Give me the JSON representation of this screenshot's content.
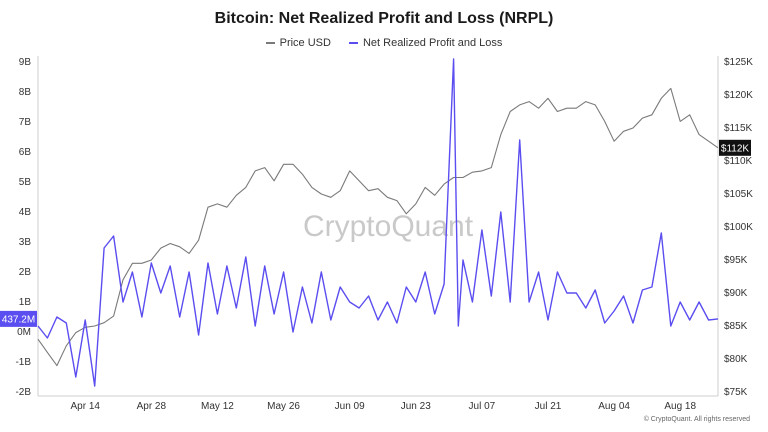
{
  "chart_data": {
    "type": "line",
    "title": "Bitcoin: Net Realized Profit and Loss (NRPL)",
    "legend": [
      {
        "name": "Price USD",
        "color": "#7a7a7a"
      },
      {
        "name": "Net Realized Profit and Loss",
        "color": "#5b4ef0"
      }
    ],
    "x_ticks": [
      "Apr 14",
      "Apr 28",
      "May 12",
      "May 26",
      "Jun 09",
      "Jun 23",
      "Jul 07",
      "Jul 21",
      "Aug 04",
      "Aug 18"
    ],
    "x_range": [
      "2024-04-04",
      "2024-08-26"
    ],
    "left_axis": {
      "ticks": [
        "9B",
        "8B",
        "7B",
        "6B",
        "5B",
        "4B",
        "3B",
        "2B",
        "1B",
        "0M",
        "-1B",
        "-2B"
      ],
      "ylim": [
        -2000000000,
        9000000000
      ]
    },
    "right_axis": {
      "ticks": [
        "$125K",
        "$120K",
        "$115K",
        "$110K",
        "$105K",
        "$100K",
        "$95K",
        "$90K",
        "$85K",
        "$80K",
        "$75K"
      ],
      "ylim": [
        75000,
        125000
      ]
    },
    "current_nrpl_label": "437.2M",
    "current_nrpl_value": 437200000,
    "current_price_label": "$112K",
    "current_price_value": 112000,
    "watermark": "CryptoQuant",
    "credit": "© CryptoQuant. All rights reserved",
    "series": [
      {
        "name": "Price USD",
        "color": "#7a7a7a",
        "x": [
          "2024-04-04",
          "2024-04-06",
          "2024-04-08",
          "2024-04-10",
          "2024-04-12",
          "2024-04-14",
          "2024-04-16",
          "2024-04-18",
          "2024-04-20",
          "2024-04-22",
          "2024-04-24",
          "2024-04-26",
          "2024-04-28",
          "2024-04-30",
          "2024-05-02",
          "2024-05-04",
          "2024-05-06",
          "2024-05-08",
          "2024-05-10",
          "2024-05-12",
          "2024-05-14",
          "2024-05-16",
          "2024-05-18",
          "2024-05-20",
          "2024-05-22",
          "2024-05-24",
          "2024-05-26",
          "2024-05-28",
          "2024-05-30",
          "2024-06-01",
          "2024-06-03",
          "2024-06-05",
          "2024-06-07",
          "2024-06-09",
          "2024-06-11",
          "2024-06-13",
          "2024-06-15",
          "2024-06-17",
          "2024-06-19",
          "2024-06-21",
          "2024-06-23",
          "2024-06-25",
          "2024-06-27",
          "2024-06-29",
          "2024-07-01",
          "2024-07-03",
          "2024-07-05",
          "2024-07-07",
          "2024-07-09",
          "2024-07-11",
          "2024-07-13",
          "2024-07-15",
          "2024-07-17",
          "2024-07-19",
          "2024-07-21",
          "2024-07-23",
          "2024-07-25",
          "2024-07-27",
          "2024-07-29",
          "2024-07-31",
          "2024-08-02",
          "2024-08-04",
          "2024-08-06",
          "2024-08-08",
          "2024-08-10",
          "2024-08-12",
          "2024-08-14",
          "2024-08-16",
          "2024-08-18",
          "2024-08-20",
          "2024-08-22",
          "2024-08-24",
          "2024-08-26"
        ],
        "values": [
          83000,
          81000,
          79000,
          82000,
          84000,
          84800,
          85000,
          85500,
          86500,
          92000,
          94500,
          94500,
          95000,
          96800,
          97500,
          97000,
          96000,
          98000,
          103000,
          103500,
          103000,
          104800,
          106000,
          108500,
          109000,
          107000,
          109500,
          109500,
          108000,
          106000,
          105000,
          104500,
          105500,
          108500,
          107000,
          105500,
          105800,
          104500,
          104000,
          102000,
          103500,
          106000,
          104800,
          106500,
          107500,
          107500,
          108300,
          108500,
          109000,
          114000,
          117500,
          118500,
          119000,
          118000,
          119500,
          117500,
          118000,
          118000,
          119000,
          118500,
          116000,
          113000,
          114500,
          115000,
          116500,
          117000,
          119500,
          121000,
          116000,
          117000,
          114000,
          113000,
          112000
        ]
      },
      {
        "name": "Net Realized Profit and Loss",
        "color": "#5b4ef0",
        "x": [
          "2024-04-04",
          "2024-04-06",
          "2024-04-08",
          "2024-04-10",
          "2024-04-12",
          "2024-04-14",
          "2024-04-16",
          "2024-04-18",
          "2024-04-20",
          "2024-04-22",
          "2024-04-24",
          "2024-04-26",
          "2024-04-28",
          "2024-04-30",
          "2024-05-02",
          "2024-05-04",
          "2024-05-06",
          "2024-05-08",
          "2024-05-10",
          "2024-05-12",
          "2024-05-14",
          "2024-05-16",
          "2024-05-18",
          "2024-05-20",
          "2024-05-22",
          "2024-05-24",
          "2024-05-26",
          "2024-05-28",
          "2024-05-30",
          "2024-06-01",
          "2024-06-03",
          "2024-06-05",
          "2024-06-07",
          "2024-06-09",
          "2024-06-11",
          "2024-06-13",
          "2024-06-15",
          "2024-06-17",
          "2024-06-19",
          "2024-06-21",
          "2024-06-23",
          "2024-06-25",
          "2024-06-27",
          "2024-06-29",
          "2024-07-01",
          "2024-07-02",
          "2024-07-03",
          "2024-07-05",
          "2024-07-07",
          "2024-07-09",
          "2024-07-11",
          "2024-07-13",
          "2024-07-15",
          "2024-07-17",
          "2024-07-19",
          "2024-07-21",
          "2024-07-23",
          "2024-07-25",
          "2024-07-27",
          "2024-07-29",
          "2024-07-31",
          "2024-08-02",
          "2024-08-04",
          "2024-08-06",
          "2024-08-08",
          "2024-08-10",
          "2024-08-12",
          "2024-08-14",
          "2024-08-16",
          "2024-08-18",
          "2024-08-20",
          "2024-08-22",
          "2024-08-24",
          "2024-08-26"
        ],
        "values": [
          200000000,
          -200000000,
          500000000,
          300000000,
          -1500000000,
          400000000,
          -1800000000,
          2800000000,
          3200000000,
          1000000000,
          2000000000,
          500000000,
          2300000000,
          1300000000,
          2200000000,
          500000000,
          2000000000,
          -100000000,
          2300000000,
          600000000,
          2200000000,
          800000000,
          2500000000,
          200000000,
          2200000000,
          600000000,
          2000000000,
          0,
          1500000000,
          300000000,
          2000000000,
          400000000,
          1500000000,
          1000000000,
          800000000,
          1200000000,
          400000000,
          1000000000,
          300000000,
          1500000000,
          1000000000,
          2000000000,
          600000000,
          1600000000,
          9100000000,
          200000000,
          2400000000,
          1000000000,
          3400000000,
          1200000000,
          4000000000,
          1000000000,
          6400000000,
          1000000000,
          2000000000,
          400000000,
          2000000000,
          1300000000,
          1300000000,
          800000000,
          1400000000,
          300000000,
          700000000,
          1200000000,
          300000000,
          1400000000,
          1500000000,
          3300000000,
          200000000,
          1000000000,
          400000000,
          1000000000,
          400000000,
          437200000
        ]
      }
    ]
  }
}
